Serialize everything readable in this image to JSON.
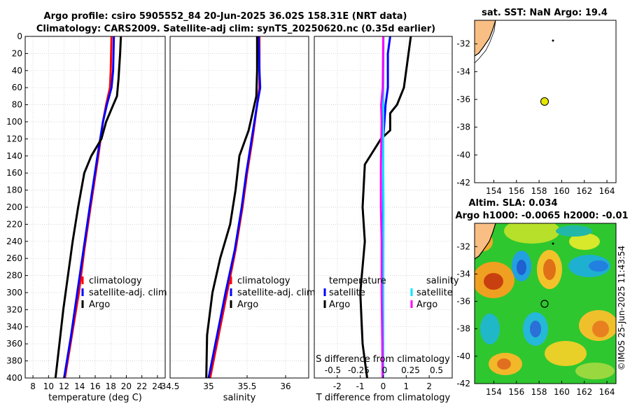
{
  "header": {
    "title_line1": "Argo profile: csiro 5905552_84 20-Jun-2025 36.02S 158.31E (NRT data)",
    "title_line2": "Climatology: CARS2009. Satellite-adj clim: synTS_20250620.nc (0.35d earlier)"
  },
  "credit": "©IMOS 25-Jun-2025 11:43:54",
  "colors": {
    "climatology": "#ff0000",
    "satellite": "#0000ff",
    "argo": "#000000",
    "salinity_sat": "#00e5ff",
    "salinity_argo": "#ff00ff"
  },
  "chart_data": [
    {
      "type": "line",
      "id": "temperature",
      "xlabel": "temperature (deg C)",
      "ylabel": "",
      "xlim": [
        7,
        25
      ],
      "ylim": [
        400,
        0
      ],
      "xticks": [
        8,
        10,
        12,
        14,
        16,
        18,
        20,
        22,
        24
      ],
      "yticks": [
        0,
        20,
        40,
        60,
        80,
        100,
        120,
        140,
        160,
        180,
        200,
        220,
        240,
        260,
        280,
        300,
        320,
        340,
        360,
        380,
        400
      ],
      "grid": true,
      "legend": {
        "position": "bottom-right",
        "entries": [
          "climatology",
          "satellite-adj. clim",
          "Argo"
        ]
      },
      "series": [
        {
          "name": "climatology",
          "color": "#ff0000",
          "depth": [
            0,
            40,
            60,
            80,
            100,
            140,
            200,
            250,
            300,
            350,
            400
          ],
          "values": [
            18.1,
            18.0,
            17.9,
            17.4,
            17.0,
            16.4,
            15.4,
            14.6,
            13.9,
            13.0,
            12.1
          ]
        },
        {
          "name": "satellite-adj. clim",
          "color": "#0000ff",
          "depth": [
            0,
            40,
            60,
            80,
            100,
            140,
            200,
            250,
            300,
            350,
            400
          ],
          "values": [
            18.4,
            18.3,
            18.1,
            17.5,
            17.0,
            16.3,
            15.3,
            14.5,
            13.7,
            12.9,
            12.0
          ]
        },
        {
          "name": "Argo",
          "color": "#000000",
          "depth": [
            0,
            20,
            50,
            70,
            85,
            100,
            120,
            140,
            160,
            200,
            240,
            280,
            320,
            360,
            400
          ],
          "values": [
            19.3,
            19.2,
            19.0,
            18.8,
            18.1,
            17.4,
            16.8,
            15.5,
            14.6,
            13.8,
            13.1,
            12.5,
            11.9,
            11.4,
            10.9
          ]
        }
      ]
    },
    {
      "type": "line",
      "id": "salinity",
      "xlabel": "salinity",
      "ylabel": "",
      "xlim": [
        34.5,
        36.3
      ],
      "ylim": [
        400,
        0
      ],
      "xticks": [
        34.5,
        35,
        35.5,
        36
      ],
      "xtick_labels": [
        "34.5",
        "35",
        "35.5",
        "36"
      ],
      "grid": true,
      "legend": {
        "position": "bottom-right",
        "entries": [
          "climatology",
          "satellite-adj. clim",
          "Argo"
        ]
      },
      "series": [
        {
          "name": "climatology",
          "color": "#ff0000",
          "depth": [
            0,
            40,
            60,
            80,
            120,
            160,
            200,
            250,
            300,
            350,
            400
          ],
          "values": [
            35.66,
            35.66,
            35.66,
            35.63,
            35.57,
            35.5,
            35.44,
            35.35,
            35.24,
            35.13,
            35.02
          ]
        },
        {
          "name": "satellite-adj. clim",
          "color": "#0000ff",
          "depth": [
            0,
            40,
            60,
            80,
            120,
            160,
            200,
            250,
            300,
            350,
            400
          ],
          "values": [
            35.65,
            35.66,
            35.67,
            35.63,
            35.56,
            35.49,
            35.43,
            35.34,
            35.22,
            35.11,
            35.0
          ]
        },
        {
          "name": "Argo",
          "color": "#000000",
          "depth": [
            0,
            40,
            70,
            90,
            110,
            140,
            180,
            220,
            260,
            300,
            350,
            400
          ],
          "values": [
            35.63,
            35.63,
            35.62,
            35.57,
            35.52,
            35.4,
            35.35,
            35.28,
            35.15,
            35.05,
            34.98,
            34.97
          ]
        }
      ]
    },
    {
      "type": "line",
      "id": "difference",
      "xlabel": "T difference from climatology",
      "xlabel_top": "S difference from climatology",
      "xlim": [
        -3,
        3
      ],
      "ylim": [
        400,
        0
      ],
      "xticks": [
        -2,
        -1,
        0,
        1,
        2
      ],
      "top_ticks": [
        "-0.5",
        "-0.25",
        "0",
        "0.25",
        "0.5"
      ],
      "top_tick_values": [
        -0.5,
        -0.25,
        0,
        0.25,
        0.5
      ],
      "grid": true,
      "legend_temperature": {
        "title": "temperature",
        "entries": [
          "satellite",
          "Argo"
        ]
      },
      "legend_salinity": {
        "title": "salinity",
        "entries": [
          "satellite",
          "Argo"
        ]
      },
      "series": [
        {
          "name": "T satellite",
          "color": "#0000ff",
          "depth": [
            0,
            20,
            60,
            80,
            120,
            200,
            300,
            400
          ],
          "values": [
            0.3,
            0.2,
            0.2,
            0.1,
            0.0,
            0.0,
            0.0,
            0.0
          ]
        },
        {
          "name": "T Argo",
          "color": "#000000",
          "depth": [
            0,
            20,
            60,
            80,
            90,
            110,
            120,
            150,
            200,
            240,
            300,
            360,
            400
          ],
          "values": [
            1.2,
            1.1,
            0.9,
            0.6,
            0.3,
            0.3,
            -0.1,
            -0.8,
            -0.9,
            -0.8,
            -1.0,
            -0.9,
            -0.7
          ]
        },
        {
          "name": "S satellite",
          "color": "#00e5ff",
          "depth": [
            0,
            80,
            160,
            200,
            300,
            400
          ],
          "values": [
            0.01,
            0.0,
            0.0,
            0.01,
            0.0,
            0.0
          ]
        },
        {
          "name": "S Argo",
          "color": "#ff00ff",
          "depth": [
            0,
            60,
            80,
            100,
            150,
            200,
            240,
            300,
            360,
            400
          ],
          "values": [
            0.0,
            -0.02,
            -0.09,
            -0.07,
            -0.1,
            -0.1,
            -0.07,
            -0.07,
            -0.04,
            -0.03
          ]
        }
      ]
    },
    {
      "type": "heatmap",
      "id": "sst_map",
      "title": "sat. SST: NaN Argo: 19.4",
      "xlim": [
        152.3,
        164.8
      ],
      "ylim": [
        -42,
        -30.3
      ],
      "xticks": [
        154,
        156,
        158,
        160,
        162,
        164
      ],
      "yticks": [
        -32,
        -34,
        -36,
        -38,
        -40,
        -42
      ],
      "argo_position": {
        "lon": 158.31,
        "lat": -36.02
      },
      "marker_color": "#e6e600"
    },
    {
      "type": "heatmap",
      "id": "sla_map",
      "title_line1": "Altim. SLA: 0.034",
      "title_line2": "Argo h1000: -0.0065 h2000: -0.01",
      "xlim": [
        152.3,
        164.8
      ],
      "ylim": [
        -42,
        -30.3
      ],
      "xticks": [
        154,
        156,
        158,
        160,
        162,
        164
      ],
      "yticks": [
        -32,
        -34,
        -36,
        -38,
        -40,
        -42
      ],
      "argo_position": {
        "lon": 158.31,
        "lat": -36.02
      }
    }
  ]
}
